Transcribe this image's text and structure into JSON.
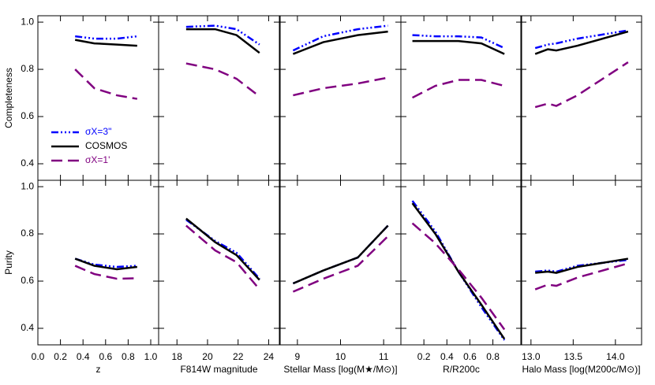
{
  "chart_data": [
    {
      "type": "line",
      "ylabel": "Completeness",
      "xlim": [
        0,
        1.07
      ],
      "ylim": [
        0.33,
        1.027
      ],
      "yticks": [
        {
          "value": 0.4,
          "label": "0.4"
        },
        {
          "value": 0.6,
          "label": "0.6"
        },
        {
          "value": 0.8,
          "label": "0.8"
        },
        {
          "value": 1.0,
          "label": "1.0"
        }
      ],
      "x": [
        0.33,
        0.5,
        0.7,
        0.88
      ],
      "series": [
        {
          "name": "σX=3\"",
          "color": "#0000ff",
          "values": [
            0.94,
            0.93,
            0.93,
            0.94
          ]
        },
        {
          "name": "COSMOS",
          "color": "#000000",
          "values": [
            0.925,
            0.91,
            0.905,
            0.9
          ]
        },
        {
          "name": "σX=1'",
          "color": "#800080",
          "values": [
            0.8,
            0.72,
            0.69,
            0.675
          ]
        }
      ]
    },
    {
      "type": "line",
      "xlim": [
        16.8,
        24.7
      ],
      "ylim": [
        0.33,
        1.027
      ],
      "x": [
        18.6,
        20.5,
        21.9,
        23.4
      ],
      "series": [
        {
          "color": "#0000ff",
          "values": [
            0.98,
            0.985,
            0.97,
            0.905
          ]
        },
        {
          "color": "#000000",
          "values": [
            0.97,
            0.97,
            0.945,
            0.87
          ]
        },
        {
          "color": "#800080",
          "values": [
            0.825,
            0.8,
            0.76,
            0.685
          ]
        }
      ]
    },
    {
      "type": "line",
      "xlim": [
        8.6,
        11.4
      ],
      "ylim": [
        0.33,
        1.027
      ],
      "x": [
        8.9,
        9.6,
        10.4,
        11.1
      ],
      "series": [
        {
          "color": "#0000ff",
          "values": [
            0.88,
            0.94,
            0.97,
            0.985
          ]
        },
        {
          "color": "#000000",
          "values": [
            0.865,
            0.915,
            0.945,
            0.96
          ]
        },
        {
          "color": "#800080",
          "values": [
            0.69,
            0.72,
            0.74,
            0.765
          ]
        }
      ]
    },
    {
      "type": "line",
      "xlim": [
        0,
        1.05
      ],
      "ylim": [
        0.33,
        1.027
      ],
      "x": [
        0.1,
        0.3,
        0.5,
        0.7,
        0.9
      ],
      "series": [
        {
          "color": "#0000ff",
          "values": [
            0.945,
            0.94,
            0.94,
            0.935,
            0.89
          ]
        },
        {
          "color": "#000000",
          "values": [
            0.92,
            0.92,
            0.92,
            0.91,
            0.865
          ]
        },
        {
          "color": "#800080",
          "values": [
            0.68,
            0.73,
            0.755,
            0.755,
            0.73
          ]
        }
      ]
    },
    {
      "type": "line",
      "xlim": [
        12.88,
        14.31
      ],
      "ylim": [
        0.33,
        1.027
      ],
      "x": [
        13.05,
        13.2,
        13.3,
        13.55,
        14.15
      ],
      "series": [
        {
          "color": "#0000ff",
          "values": [
            0.89,
            0.905,
            0.91,
            0.93,
            0.965
          ]
        },
        {
          "color": "#000000",
          "values": [
            0.865,
            0.885,
            0.88,
            0.9,
            0.96
          ]
        },
        {
          "color": "#800080",
          "values": [
            0.64,
            0.655,
            0.645,
            0.69,
            0.83
          ]
        }
      ]
    },
    {
      "type": "line",
      "ylabel": "Purity",
      "xlabel": "z",
      "xlim": [
        0,
        1.07
      ],
      "ylim": [
        0.33,
        1.027
      ],
      "yticks": [
        {
          "value": 0.4,
          "label": "0.4"
        },
        {
          "value": 0.6,
          "label": "0.6"
        },
        {
          "value": 0.8,
          "label": "0.8"
        },
        {
          "value": 1.0,
          "label": "1.0"
        }
      ],
      "xticks": [
        {
          "value": 0,
          "label": "0.0"
        },
        0.2,
        0.4,
        0.6,
        0.8,
        {
          "value": 1.0,
          "label": "1.0"
        }
      ],
      "x": [
        0.33,
        0.5,
        0.7,
        0.88
      ],
      "series": [
        {
          "color": "#0000ff",
          "values": [
            0.695,
            0.67,
            0.66,
            0.665
          ]
        },
        {
          "color": "#000000",
          "values": [
            0.695,
            0.665,
            0.65,
            0.66
          ]
        },
        {
          "color": "#800080",
          "values": [
            0.665,
            0.63,
            0.61,
            0.612
          ]
        }
      ]
    },
    {
      "type": "line",
      "xlabel": "F814W magnitude",
      "xlim": [
        16.8,
        24.7
      ],
      "ylim": [
        0.33,
        1.027
      ],
      "xticks": [
        18,
        20,
        22,
        24
      ],
      "x": [
        18.6,
        20.5,
        21.9,
        23.4
      ],
      "series": [
        {
          "color": "#0000ff",
          "values": [
            0.86,
            0.77,
            0.72,
            0.61
          ]
        },
        {
          "color": "#000000",
          "values": [
            0.865,
            0.765,
            0.71,
            0.605
          ]
        },
        {
          "color": "#800080",
          "values": [
            0.835,
            0.73,
            0.68,
            0.565
          ]
        }
      ]
    },
    {
      "type": "line",
      "xlabel": "Stellar Mass [log(M★/M⊙)]",
      "xlim": [
        8.6,
        11.4
      ],
      "ylim": [
        0.33,
        1.027
      ],
      "xticks": [
        9,
        10,
        11
      ],
      "x": [
        8.9,
        9.6,
        10.4,
        11.1
      ],
      "series": [
        {
          "color": "#0000ff",
          "values": [
            0.59,
            0.645,
            0.7,
            0.835
          ]
        },
        {
          "color": "#000000",
          "values": [
            0.59,
            0.645,
            0.7,
            0.835
          ]
        },
        {
          "color": "#800080",
          "values": [
            0.555,
            0.61,
            0.665,
            0.79
          ]
        }
      ]
    },
    {
      "type": "line",
      "xlabel": "R/R200c",
      "xlim": [
        0,
        1.05
      ],
      "ylim": [
        0.33,
        1.027
      ],
      "xticks": [
        0.2,
        0.4,
        0.6,
        0.8
      ],
      "x": [
        0.1,
        0.3,
        0.5,
        0.7,
        0.9
      ],
      "series": [
        {
          "color": "#0000ff",
          "values": [
            0.94,
            0.81,
            0.64,
            0.49,
            0.35
          ]
        },
        {
          "color": "#000000",
          "values": [
            0.93,
            0.8,
            0.64,
            0.5,
            0.355
          ]
        },
        {
          "color": "#800080",
          "values": [
            0.845,
            0.76,
            0.65,
            0.53,
            0.395
          ]
        }
      ]
    },
    {
      "type": "line",
      "xlabel": "Halo Mass [log(M200c/M⊙)]",
      "xlim": [
        12.88,
        14.31
      ],
      "ylim": [
        0.33,
        1.027
      ],
      "xticks": [
        {
          "value": 13.0,
          "label": "13.0"
        },
        {
          "value": 13.5,
          "label": "13.5"
        },
        {
          "value": 14.0,
          "label": "14.0"
        }
      ],
      "x": [
        13.05,
        13.2,
        13.3,
        13.55,
        14.15
      ],
      "series": [
        {
          "color": "#0000ff",
          "values": [
            0.64,
            0.645,
            0.64,
            0.665,
            0.69
          ]
        },
        {
          "color": "#000000",
          "values": [
            0.635,
            0.64,
            0.635,
            0.66,
            0.695
          ]
        },
        {
          "color": "#800080",
          "values": [
            0.565,
            0.585,
            0.58,
            0.615,
            0.675
          ]
        }
      ]
    }
  ]
}
